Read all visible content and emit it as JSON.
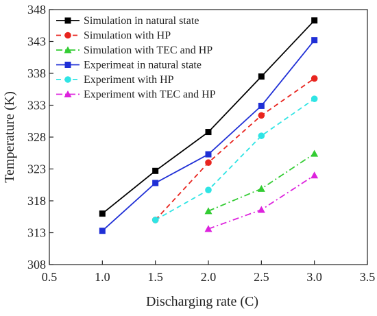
{
  "chart_data": {
    "type": "line",
    "xlabel": "Discharging rate (C)",
    "ylabel": "Temperature (K)",
    "xlim": [
      0.5,
      3.5
    ],
    "ylim": [
      308,
      348
    ],
    "xticks": [
      "0.5",
      "1.0",
      "1.5",
      "2.0",
      "2.5",
      "3.0",
      "3.5"
    ],
    "yticks": [
      "308",
      "313",
      "318",
      "323",
      "328",
      "333",
      "338",
      "343",
      "348"
    ],
    "grid": false,
    "legend_position": "top-left",
    "series": [
      {
        "name": "Simulation in natural state",
        "color": "#000000",
        "dash": "solid",
        "marker": "square",
        "x": [
          1.0,
          1.5,
          2.0,
          2.5,
          3.0
        ],
        "y": [
          316.0,
          322.7,
          328.8,
          337.5,
          346.3
        ]
      },
      {
        "name": "Simulation with HP",
        "color": "#e8251f",
        "dash": "dashed",
        "marker": "circle",
        "x": [
          1.5,
          2.0,
          2.5,
          3.0
        ],
        "y": [
          315.0,
          324.0,
          331.4,
          337.2
        ]
      },
      {
        "name": "Simulation with TEC and HP",
        "color": "#33cc33",
        "dash": "dashdot",
        "marker": "triangle",
        "x": [
          2.0,
          2.5,
          3.0
        ],
        "y": [
          316.4,
          319.9,
          325.4
        ]
      },
      {
        "name": "Experimeat in natural state",
        "color": "#1f2fd6",
        "dash": "solid",
        "marker": "square",
        "x": [
          1.0,
          1.5,
          2.0,
          2.5,
          3.0
        ],
        "y": [
          313.3,
          320.8,
          325.3,
          332.9,
          343.2
        ]
      },
      {
        "name": "Experiment with HP",
        "color": "#2fe4e4",
        "dash": "dashed",
        "marker": "circle",
        "x": [
          1.5,
          2.0,
          2.5,
          3.0
        ],
        "y": [
          315.0,
          319.7,
          328.2,
          334.0
        ]
      },
      {
        "name": "Experiment with TEC and HP",
        "color": "#dd22dd",
        "dash": "dashdot",
        "marker": "triangle",
        "x": [
          2.0,
          2.5,
          3.0
        ],
        "y": [
          313.6,
          316.6,
          322.0
        ]
      }
    ]
  }
}
